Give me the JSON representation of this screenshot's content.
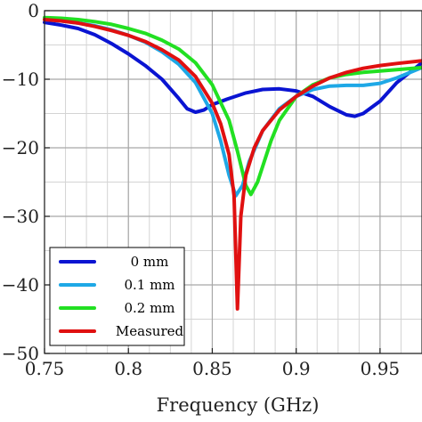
{
  "chart_data": {
    "type": "line",
    "xlabel": "Frequency (GHz)",
    "ylabel": "",
    "xlim": [
      0.75,
      0.975
    ],
    "ylim": [
      -50,
      0
    ],
    "xticks": [
      0.75,
      0.8,
      0.85,
      0.9,
      0.95
    ],
    "xtick_labels": [
      "0.75",
      "0.8",
      "0.85",
      "0.9",
      "0.95"
    ],
    "yticks": [
      0,
      -10,
      -20,
      -30,
      -40,
      -50
    ],
    "ytick_labels": [
      "0",
      "−10",
      "−20",
      "−30",
      "−40",
      "−50"
    ],
    "x_minor_step": 0.0125,
    "y_minor_step": 5,
    "grid": true,
    "legend_position": "bottom-left",
    "series": [
      {
        "name": "0 mm",
        "color": "#0a14d2",
        "points": [
          [
            0.75,
            -1.7
          ],
          [
            0.76,
            -2.1
          ],
          [
            0.77,
            -2.6
          ],
          [
            0.78,
            -3.5
          ],
          [
            0.79,
            -4.8
          ],
          [
            0.8,
            -6.3
          ],
          [
            0.81,
            -8.0
          ],
          [
            0.82,
            -10.0
          ],
          [
            0.83,
            -12.8
          ],
          [
            0.835,
            -14.3
          ],
          [
            0.84,
            -14.8
          ],
          [
            0.845,
            -14.5
          ],
          [
            0.85,
            -13.7
          ],
          [
            0.86,
            -12.8
          ],
          [
            0.87,
            -12.0
          ],
          [
            0.88,
            -11.5
          ],
          [
            0.89,
            -11.4
          ],
          [
            0.9,
            -11.7
          ],
          [
            0.91,
            -12.5
          ],
          [
            0.92,
            -14.0
          ],
          [
            0.93,
            -15.2
          ],
          [
            0.935,
            -15.4
          ],
          [
            0.94,
            -15.0
          ],
          [
            0.95,
            -13.2
          ],
          [
            0.96,
            -10.5
          ],
          [
            0.975,
            -7.6
          ]
        ]
      },
      {
        "name": "0.1 mm",
        "color": "#1ea8e6",
        "points": [
          [
            0.75,
            -1.3
          ],
          [
            0.76,
            -1.5
          ],
          [
            0.77,
            -1.8
          ],
          [
            0.78,
            -2.2
          ],
          [
            0.79,
            -2.8
          ],
          [
            0.8,
            -3.6
          ],
          [
            0.81,
            -4.6
          ],
          [
            0.82,
            -6.0
          ],
          [
            0.83,
            -7.8
          ],
          [
            0.84,
            -10.5
          ],
          [
            0.85,
            -15.0
          ],
          [
            0.855,
            -19.0
          ],
          [
            0.86,
            -24.0
          ],
          [
            0.864,
            -27.0
          ],
          [
            0.868,
            -25.5
          ],
          [
            0.872,
            -22.0
          ],
          [
            0.88,
            -17.5
          ],
          [
            0.89,
            -14.3
          ],
          [
            0.9,
            -12.5
          ],
          [
            0.91,
            -11.5
          ],
          [
            0.92,
            -11.0
          ],
          [
            0.93,
            -10.9
          ],
          [
            0.94,
            -10.9
          ],
          [
            0.95,
            -10.6
          ],
          [
            0.96,
            -9.8
          ],
          [
            0.975,
            -8.3
          ]
        ]
      },
      {
        "name": "0.2 mm",
        "color": "#22e022",
        "points": [
          [
            0.75,
            -1.0
          ],
          [
            0.76,
            -1.1
          ],
          [
            0.77,
            -1.3
          ],
          [
            0.78,
            -1.6
          ],
          [
            0.79,
            -2.0
          ],
          [
            0.8,
            -2.6
          ],
          [
            0.81,
            -3.3
          ],
          [
            0.82,
            -4.3
          ],
          [
            0.83,
            -5.6
          ],
          [
            0.84,
            -7.6
          ],
          [
            0.85,
            -10.8
          ],
          [
            0.86,
            -16.0
          ],
          [
            0.865,
            -20.5
          ],
          [
            0.87,
            -25.5
          ],
          [
            0.873,
            -26.8
          ],
          [
            0.877,
            -25.0
          ],
          [
            0.885,
            -19.0
          ],
          [
            0.89,
            -16.0
          ],
          [
            0.9,
            -12.5
          ],
          [
            0.91,
            -10.8
          ],
          [
            0.92,
            -9.8
          ],
          [
            0.93,
            -9.3
          ],
          [
            0.94,
            -9.0
          ],
          [
            0.95,
            -8.8
          ],
          [
            0.96,
            -8.6
          ],
          [
            0.975,
            -8.3
          ]
        ]
      },
      {
        "name": "Measured",
        "color": "#e01010",
        "points": [
          [
            0.75,
            -1.3
          ],
          [
            0.76,
            -1.5
          ],
          [
            0.77,
            -1.8
          ],
          [
            0.78,
            -2.3
          ],
          [
            0.79,
            -2.9
          ],
          [
            0.8,
            -3.6
          ],
          [
            0.81,
            -4.5
          ],
          [
            0.82,
            -5.7
          ],
          [
            0.83,
            -7.2
          ],
          [
            0.84,
            -9.6
          ],
          [
            0.85,
            -13.5
          ],
          [
            0.855,
            -16.5
          ],
          [
            0.86,
            -21.0
          ],
          [
            0.863,
            -27.0
          ],
          [
            0.865,
            -43.5
          ],
          [
            0.867,
            -30.0
          ],
          [
            0.87,
            -24.0
          ],
          [
            0.875,
            -20.0
          ],
          [
            0.88,
            -17.5
          ],
          [
            0.89,
            -14.5
          ],
          [
            0.9,
            -12.5
          ],
          [
            0.91,
            -11.0
          ],
          [
            0.92,
            -9.8
          ],
          [
            0.93,
            -9.0
          ],
          [
            0.94,
            -8.4
          ],
          [
            0.95,
            -8.0
          ],
          [
            0.96,
            -7.7
          ],
          [
            0.975,
            -7.3
          ]
        ]
      }
    ]
  }
}
